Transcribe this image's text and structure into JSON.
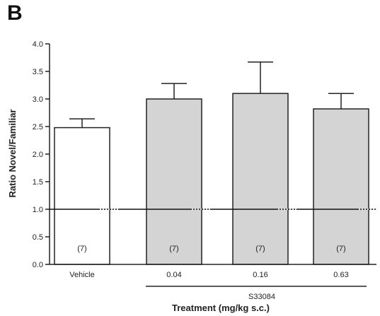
{
  "panel_label": "B",
  "chart_data": {
    "type": "bar",
    "categories": [
      "Vehicle",
      "0.04",
      "0.16",
      "0.63"
    ],
    "values": [
      2.48,
      3.0,
      3.1,
      2.82
    ],
    "errors": [
      0.16,
      0.28,
      0.57,
      0.28
    ],
    "n_labels": [
      "(7)",
      "(7)",
      "(7)",
      "(7)"
    ],
    "bar_colors": [
      "#ffffff",
      "#d4d4d4",
      "#d4d4d4",
      "#d4d4d4"
    ],
    "ylabel": "Ratio Novel/Familiar",
    "xlabel": "Treatment (mg/kg s.c.)",
    "group_label": "S33084",
    "group_categories": [
      "0.04",
      "0.16",
      "0.63"
    ],
    "ylim": [
      0,
      4.0
    ],
    "yticks": [
      "0.0",
      "0.5",
      "1.0",
      "1.5",
      "2.0",
      "2.5",
      "3.0",
      "3.5",
      "4.0"
    ],
    "reference_line": 1.0,
    "grid": false
  }
}
